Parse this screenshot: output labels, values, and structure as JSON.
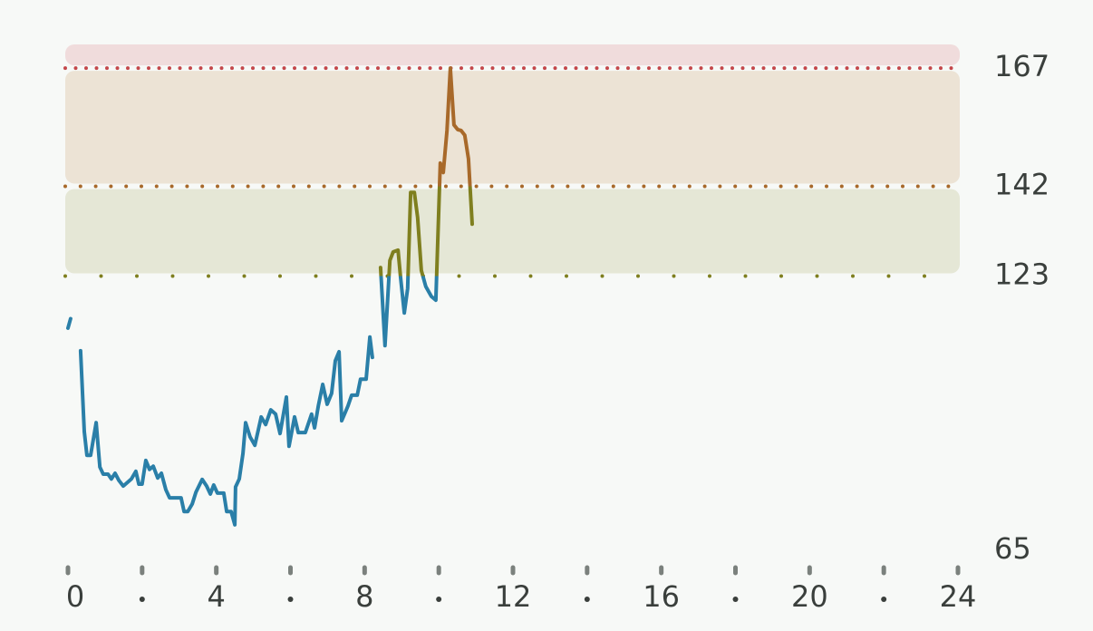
{
  "chart_data": {
    "type": "line",
    "x": [
      0,
      0.07,
      0.2,
      0.34,
      0.44,
      0.51,
      0.61,
      0.76,
      0.86,
      0.95,
      1.08,
      1.17,
      1.27,
      1.37,
      1.49,
      1.61,
      1.71,
      1.83,
      1.91,
      2.0,
      2.1,
      2.2,
      2.3,
      2.42,
      2.52,
      2.64,
      2.74,
      2.93,
      3.05,
      3.13,
      3.23,
      3.35,
      3.45,
      3.62,
      3.74,
      3.84,
      3.93,
      4.03,
      4.2,
      4.28,
      4.4,
      4.5,
      4.52,
      4.62,
      4.72,
      4.79,
      4.91,
      5.04,
      5.21,
      5.33,
      5.47,
      5.6,
      5.72,
      5.89,
      5.96,
      6.11,
      6.21,
      6.4,
      6.57,
      6.65,
      6.75,
      6.87,
      6.99,
      7.11,
      7.21,
      7.31,
      7.38,
      7.55,
      7.65,
      7.8,
      7.89,
      8.04,
      8.14,
      8.21,
      8.32,
      8.43,
      8.55,
      8.68,
      8.77,
      8.9,
      8.97,
      9.07,
      9.16,
      9.24,
      9.34,
      9.43,
      9.53,
      9.65,
      9.8,
      9.92,
      10.04,
      10.12,
      10.22,
      10.31,
      10.41,
      10.51,
      10.6,
      10.7,
      10.8,
      10.9
    ],
    "series": [
      {
        "values": [
          112,
          114,
          null,
          107.2,
          90.1,
          85.1,
          85.1,
          92.0,
          82.6,
          81.1,
          81.1,
          80.1,
          81.3,
          79.8,
          78.6,
          79.4,
          80.1,
          81.7,
          79.0,
          79.0,
          84.0,
          82.1,
          82.8,
          80.3,
          81.3,
          77.8,
          76.1,
          76.1,
          76.1,
          73.2,
          73.2,
          74.8,
          77.3,
          80.0,
          78.6,
          76.9,
          78.8,
          77.1,
          77.1,
          73.2,
          73.2,
          70.4,
          78.4,
          80.1,
          85.5,
          92.0,
          89.0,
          87.2,
          93.2,
          91.6,
          94.7,
          93.8,
          89.7,
          97.4,
          87.0,
          93.2,
          89.9,
          89.9,
          93.8,
          90.9,
          95.5,
          100.1,
          95.9,
          98.2,
          105.1,
          107.0,
          92.4,
          95.5,
          97.8,
          97.8,
          101.2,
          101.2,
          110.1,
          105.8,
          null,
          124.8,
          108.3,
          126.3,
          128.1,
          128.5,
          122.7,
          115.2,
          120.4,
          140.7,
          140.7,
          135.4,
          124.2,
          120.8,
          118.7,
          117.9,
          146.9,
          144.9,
          153.8,
          167,
          155.0,
          154.0,
          153.8,
          152.8,
          147.8,
          134.0
        ],
        "color": "#2a7fa8"
      }
    ],
    "zones": [
      {
        "from": 123,
        "to": 142,
        "color": "#7f7f1f",
        "fill": "#e5e7d6"
      },
      {
        "from": 142,
        "to": 167,
        "color": "#a8692a",
        "fill": "#ece3d5"
      },
      {
        "from": 167,
        "to": 172,
        "color": "#c4474a",
        "fill": "#f0dcdc"
      }
    ],
    "xlim": [
      0,
      24
    ],
    "xticks": [
      0,
      4,
      8,
      12,
      16,
      20,
      24
    ],
    "xminor": [
      2,
      6,
      10,
      14,
      18,
      22
    ],
    "ylim": [
      65,
      172
    ],
    "yticks": [
      65,
      123,
      142,
      167
    ]
  }
}
